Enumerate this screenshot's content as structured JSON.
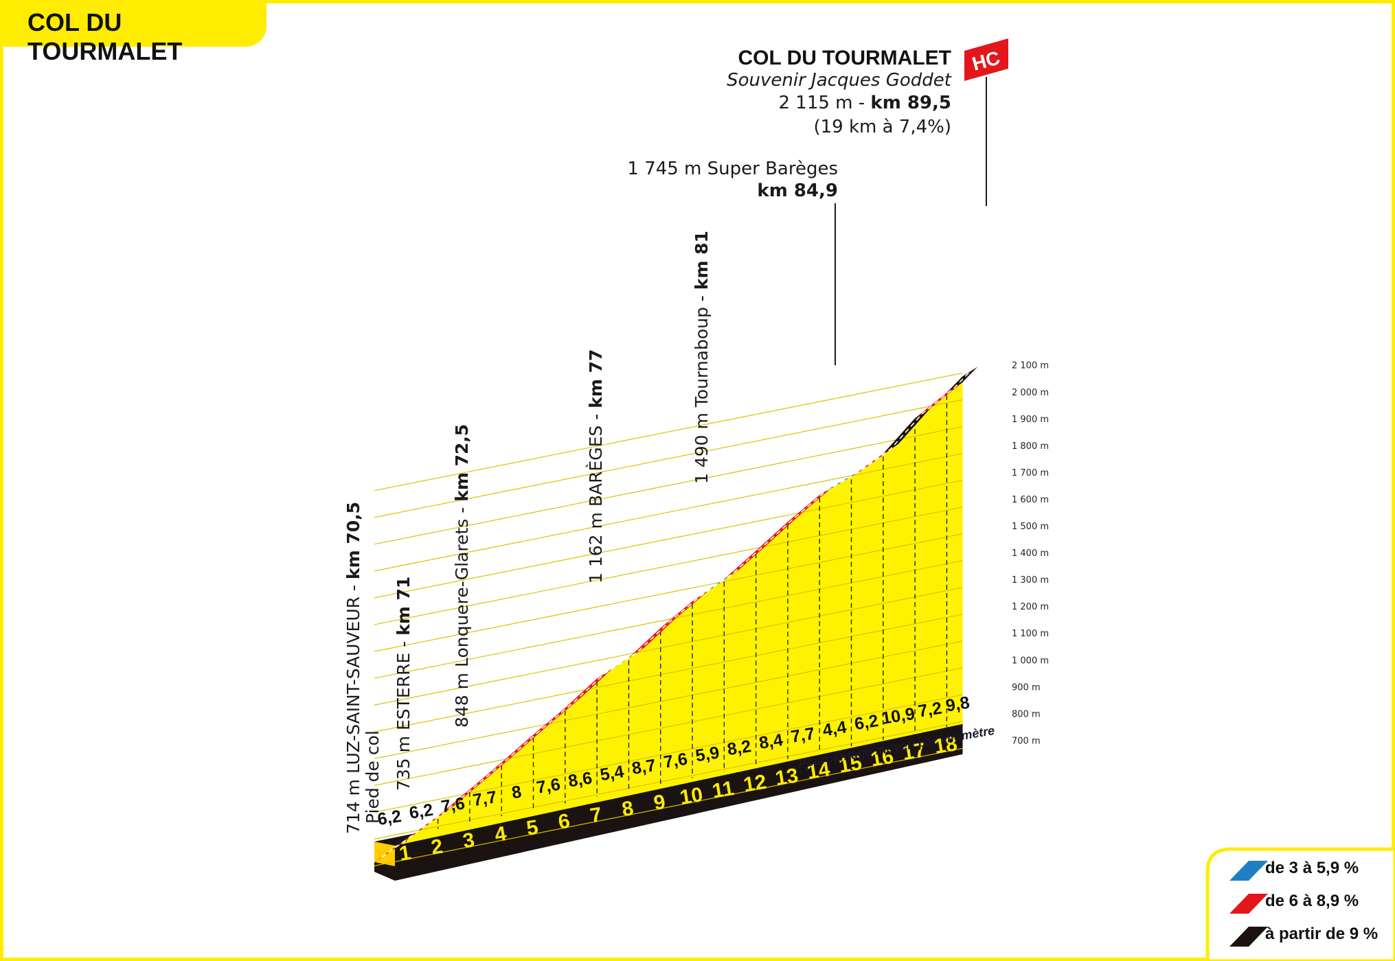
{
  "header": {
    "title": "COL DU TOURMALET"
  },
  "summit": {
    "name": "COL DU TOURMALET",
    "subtitle": "Souvenir Jacques Goddet",
    "alt_text": "2 115 m - ",
    "km_text": "km 89,5",
    "climb_text": "(19 km à 7,4%)",
    "category": "HC"
  },
  "waypoints": [
    {
      "text": "714 m LUZ-SAINT-SAUVEUR - ",
      "km": "km 70,5",
      "sub": "Pied de col"
    },
    {
      "text": "735 m ESTERRE - ",
      "km": "km 71"
    },
    {
      "text": "848 m Lonquere-Glarets - ",
      "km": "km 72,5"
    },
    {
      "text": "1 162 m BARÈGES - ",
      "km": "km 77"
    },
    {
      "text": "1 490 m Tournaboup - ",
      "km": "km 81"
    },
    {
      "text": "1 745 m Super Barèges",
      "km": "km 84,9"
    }
  ],
  "avg_label": "Pourcentage moyen par kilomètre",
  "legend": [
    {
      "label": "de 3 à 5,9 %",
      "color": "#1f7fc4"
    },
    {
      "label": "de 6 à 8,9 %",
      "color": "#e3171b"
    },
    {
      "label": "à partir de 9 %",
      "color": "#1a1311"
    }
  ],
  "colors": {
    "accent": "#ffec00",
    "profile": "#fff200",
    "base": "#1a1311",
    "start": "#ffcc00"
  },
  "chart_data": {
    "type": "area",
    "title": "COL DU TOURMALET",
    "xlabel": "",
    "ylabel": "",
    "y_ticks": [
      "700 m",
      "800 m",
      "900 m",
      "1 000 m",
      "1 100 m",
      "1 200 m",
      "1 300 m",
      "1 400 m",
      "1 500 m",
      "1 600 m",
      "1 700 m",
      "1 800 m",
      "1 900 m",
      "2 000 m",
      "2 100 m"
    ],
    "ylim": [
      700,
      2100
    ],
    "km_labels": [
      "1",
      "2",
      "3",
      "4",
      "5",
      "6",
      "7",
      "8",
      "9",
      "10",
      "11",
      "12",
      "13",
      "14",
      "15",
      "16",
      "17",
      "18"
    ],
    "gradients": [
      "6,2",
      "6,2",
      "7,6",
      "7,7",
      "8",
      "7,6",
      "8,6",
      "5,4",
      "8,7",
      "7,6",
      "5,9",
      "8,2",
      "8,4",
      "7,7",
      "4,4",
      "6,2",
      "10,9",
      "7,2",
      "9,8"
    ],
    "gradient_values": [
      6.2,
      6.2,
      7.6,
      7.7,
      8,
      7.6,
      8.6,
      5.4,
      8.7,
      7.6,
      5.9,
      8.2,
      8.4,
      7.7,
      4.4,
      6.2,
      10.9,
      7.2,
      9.8
    ],
    "start_altitude": 714,
    "summit_altitude": 2115
  }
}
